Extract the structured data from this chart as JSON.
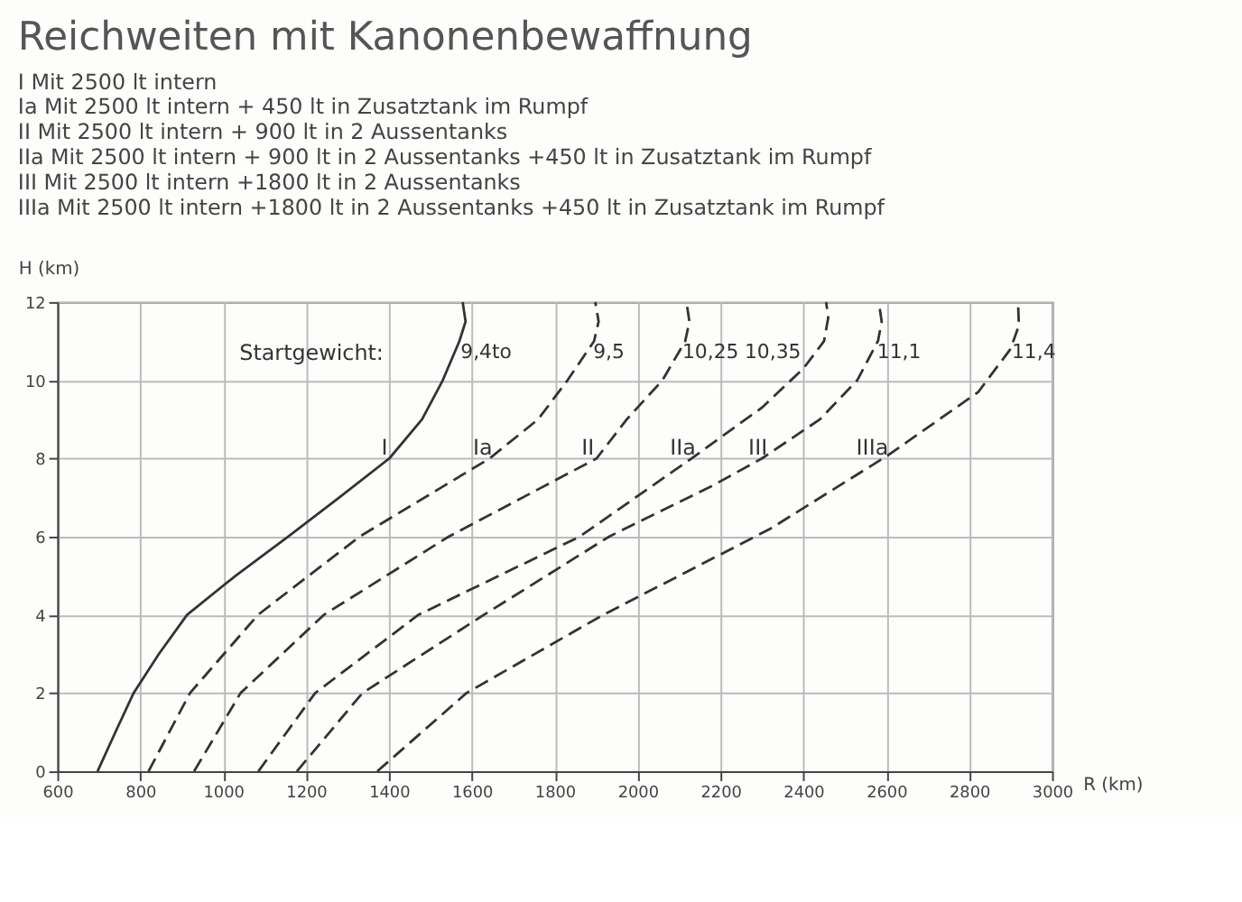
{
  "chart_data": {
    "type": "line",
    "title": "Reichweiten mit Kanonenbewaffnung",
    "subtitle": "I   Mit 2500 lt intern\nIa Mit 2500 lt intern + 450 lt in Zusatztank im Rumpf\nII  Mit 2500 lt intern + 900 lt in 2 Aussentanks\nIIa Mit 2500 lt intern + 900 lt in 2 Aussentanks +450 lt in Zusatztank im Rumpf\nIII Mit 2500 lt intern +1800 lt in 2 Aussentanks\nIIIa Mit 2500 lt intern +1800 lt in 2 Aussentanks +450 lt in Zusatztank im Rumpf",
    "xlabel": "R (km)",
    "ylabel": "H (km)",
    "series": [
      {
        "name": "I",
        "color": "#333333",
        "line_style": "solid",
        "x": [
          697,
          740,
          784,
          845,
          913,
          1030,
          1157,
          1280,
          1401,
          1480,
          1530,
          1570,
          1585,
          1578
        ],
        "values": [
          0,
          1,
          2,
          3,
          4,
          5,
          6,
          7,
          8,
          9,
          10,
          11,
          11.5,
          12
        ]
      },
      {
        "name": "Ia",
        "color": "#333333",
        "line_style": "dashed",
        "x": [
          820,
          920,
          1084,
          1329,
          1643,
          1760,
          1831,
          1895,
          1906,
          1898
        ],
        "values": [
          0,
          2,
          4,
          6,
          8,
          9,
          10,
          11,
          11.5,
          12
        ]
      },
      {
        "name": "II",
        "color": "#333333",
        "line_style": "dashed",
        "x": [
          930,
          1042,
          1243,
          1544,
          1901,
          1974,
          2060,
          2115,
          2125,
          2118
        ],
        "values": [
          0,
          2,
          4,
          6,
          8,
          9,
          10,
          11,
          11.5,
          12
        ]
      },
      {
        "name": "IIa",
        "color": "#333333",
        "line_style": "dashed",
        "x": [
          1085,
          1222,
          1471,
          1860,
          2130,
          2300,
          2400,
          2450,
          2460,
          2455
        ],
        "values": [
          0,
          2,
          4,
          6,
          8,
          9.3,
          10.3,
          11,
          11.6,
          12
        ]
      },
      {
        "name": "III",
        "color": "#333333",
        "line_style": "dashed",
        "x": [
          1178,
          1336,
          1629,
          1931,
          2180,
          2300,
          2440,
          2530,
          2580,
          2589,
          2582
        ],
        "values": [
          0,
          2,
          4,
          6,
          7.3,
          8,
          9,
          10,
          11,
          11.5,
          12
        ]
      },
      {
        "name": "IIIa",
        "color": "#333333",
        "line_style": "dashed",
        "x": [
          1372,
          1587,
          1917,
          2320,
          2607,
          2822,
          2900,
          2920,
          2918
        ],
        "values": [
          0,
          2,
          4,
          6.2,
          8.1,
          9.7,
          10.8,
          11.4,
          12
        ]
      }
    ],
    "annotations": [
      "Startgewicht:",
      {
        "text": "9,4to",
        "x": 1560,
        "y": 10.7
      },
      {
        "text": "9,5",
        "x": 1880,
        "y": 10.7
      },
      {
        "text": "10,25",
        "x": 2095,
        "y": 10.7
      },
      {
        "text": "10,35",
        "x": 2429,
        "y": 10.7
      },
      {
        "text": "11,1",
        "x": 2565,
        "y": 10.7
      },
      {
        "text": "11,4",
        "x": 2890,
        "y": 10.7
      }
    ],
    "xlim": [
      600,
      3000
    ],
    "xticks": [
      600,
      800,
      1000,
      1200,
      1400,
      1600,
      1800,
      2000,
      2200,
      2400,
      2600,
      2800,
      3000
    ],
    "ylim": [
      0,
      12
    ],
    "yticks": [
      0,
      2,
      4,
      6,
      8,
      10,
      12
    ],
    "grid": true,
    "legend": false,
    "marker": "none"
  }
}
